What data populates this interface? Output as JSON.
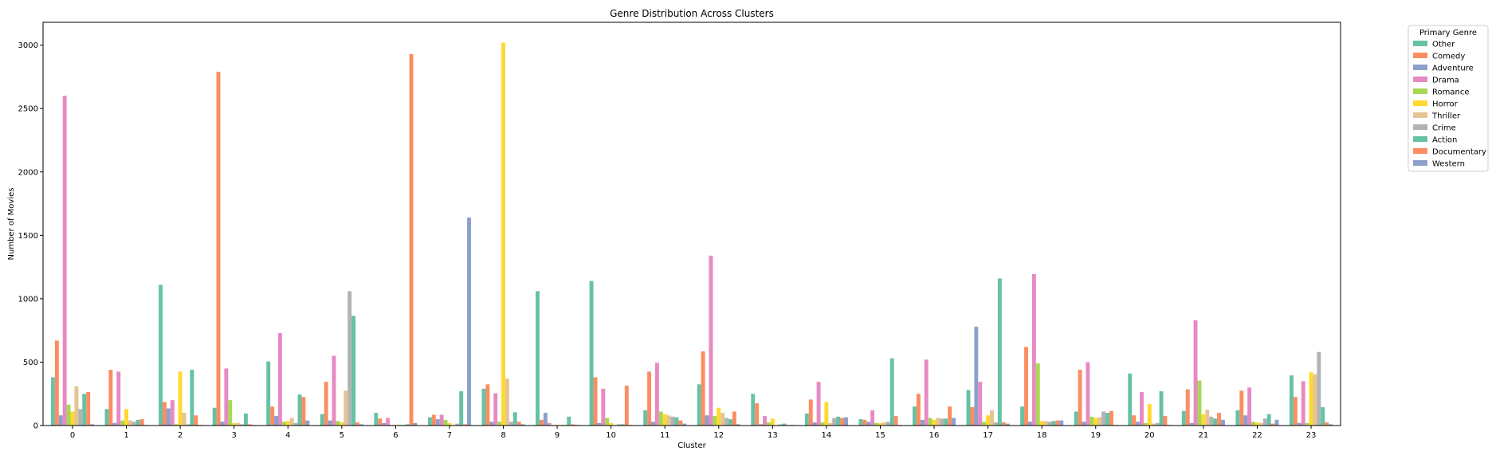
{
  "chart_data": {
    "type": "bar",
    "title": "Genre Distribution Across Clusters",
    "xlabel": "Cluster",
    "ylabel": "Number of Movies",
    "ylim": [
      0,
      3180
    ],
    "yticks": [
      0,
      500,
      1000,
      1500,
      2000,
      2500,
      3000
    ],
    "grid": false,
    "legend": {
      "title": "Primary Genre",
      "placement": "outside-top-right"
    },
    "categories": [
      "0",
      "1",
      "2",
      "3",
      "4",
      "5",
      "6",
      "7",
      "8",
      "9",
      "10",
      "11",
      "12",
      "13",
      "14",
      "15",
      "16",
      "17",
      "18",
      "19",
      "20",
      "21",
      "22",
      "23"
    ],
    "series": [
      {
        "name": "Other",
        "color": "#66c2a5",
        "values": [
          380,
          130,
          1110,
          140,
          505,
          90,
          100,
          65,
          290,
          1060,
          1140,
          120,
          325,
          250,
          95,
          50,
          150,
          280,
          150,
          110,
          410,
          115,
          120,
          395
        ]
      },
      {
        "name": "Comedy",
        "color": "#fc8d62",
        "values": [
          670,
          440,
          185,
          2790,
          150,
          345,
          55,
          85,
          325,
          45,
          380,
          425,
          585,
          175,
          205,
          45,
          250,
          145,
          620,
          440,
          80,
          285,
          275,
          225
        ]
      },
      {
        "name": "Adventure",
        "color": "#8da0cb",
        "values": [
          80,
          20,
          135,
          30,
          75,
          40,
          20,
          50,
          30,
          100,
          20,
          30,
          80,
          10,
          25,
          30,
          45,
          780,
          30,
          30,
          30,
          20,
          80,
          20
        ]
      },
      {
        "name": "Drama",
        "color": "#e78ac3",
        "values": [
          2600,
          425,
          200,
          450,
          730,
          550,
          60,
          85,
          255,
          20,
          290,
          495,
          1340,
          75,
          345,
          120,
          520,
          345,
          1195,
          500,
          265,
          830,
          300,
          350
        ]
      },
      {
        "name": "Romance",
        "color": "#a6d854",
        "values": [
          165,
          40,
          10,
          200,
          30,
          35,
          5,
          45,
          30,
          5,
          60,
          110,
          75,
          25,
          25,
          20,
          60,
          30,
          490,
          70,
          20,
          355,
          30,
          20
        ]
      },
      {
        "name": "Horror",
        "color": "#ffd92f",
        "values": [
          110,
          130,
          425,
          20,
          35,
          25,
          5,
          20,
          3020,
          5,
          20,
          90,
          140,
          55,
          185,
          20,
          45,
          80,
          35,
          60,
          170,
          90,
          25,
          420
        ]
      },
      {
        "name": "Thriller",
        "color": "#e5c494",
        "values": [
          310,
          40,
          100,
          20,
          60,
          275,
          5,
          5,
          370,
          5,
          5,
          80,
          100,
          5,
          20,
          25,
          60,
          120,
          35,
          65,
          15,
          125,
          20,
          405
        ]
      },
      {
        "name": "Crime",
        "color": "#b3b3b3",
        "values": [
          130,
          30,
          10,
          10,
          20,
          1060,
          5,
          15,
          30,
          5,
          10,
          70,
          60,
          10,
          60,
          30,
          55,
          25,
          30,
          110,
          20,
          70,
          55,
          580
        ]
      },
      {
        "name": "Action",
        "color": "#66c2a5",
        "values": [
          250,
          45,
          440,
          95,
          245,
          865,
          10,
          270,
          105,
          70,
          10,
          65,
          50,
          15,
          70,
          530,
          55,
          1160,
          35,
          100,
          270,
          55,
          90,
          145
        ]
      },
      {
        "name": "Documentary",
        "color": "#fc8d62",
        "values": [
          265,
          50,
          80,
          10,
          225,
          25,
          2930,
          10,
          30,
          10,
          315,
          40,
          110,
          5,
          60,
          75,
          150,
          25,
          40,
          115,
          75,
          100,
          15,
          25
        ]
      },
      {
        "name": "Western",
        "color": "#8da0cb",
        "values": [
          10,
          5,
          5,
          5,
          40,
          10,
          20,
          1640,
          10,
          5,
          5,
          15,
          10,
          5,
          65,
          5,
          60,
          15,
          40,
          5,
          5,
          45,
          45,
          10
        ]
      }
    ]
  }
}
